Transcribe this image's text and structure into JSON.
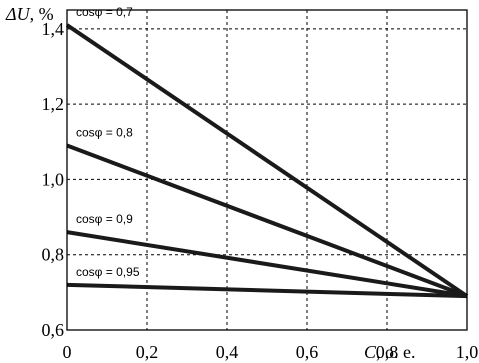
{
  "chart_data": {
    "type": "line",
    "ylabel_symbol": "ΔU",
    "ylabel_unit": ", %",
    "xlabel_symbol": "C",
    "xlabel_unit": ", o. e.",
    "xlim": [
      0,
      1.0
    ],
    "ylim": [
      0.6,
      1.45
    ],
    "x_ticks": [
      "0",
      "0,2",
      "0,4",
      "0,6",
      "0,8",
      "1,0"
    ],
    "y_ticks": [
      "0,6",
      "0,8",
      "1,0",
      "1,2",
      "1,4"
    ],
    "grid": true,
    "series": [
      {
        "name": "cosφ = 0,7",
        "x": [
          0,
          1.0
        ],
        "y": [
          1.41,
          0.69
        ]
      },
      {
        "name": "cosφ = 0,8",
        "x": [
          0,
          1.0
        ],
        "y": [
          1.09,
          0.69
        ]
      },
      {
        "name": "cosφ = 0,9",
        "x": [
          0,
          1.0
        ],
        "y": [
          0.86,
          0.69
        ]
      },
      {
        "name": "cosφ = 0,95",
        "x": [
          0,
          1.0
        ],
        "y": [
          0.72,
          0.69
        ]
      }
    ]
  }
}
